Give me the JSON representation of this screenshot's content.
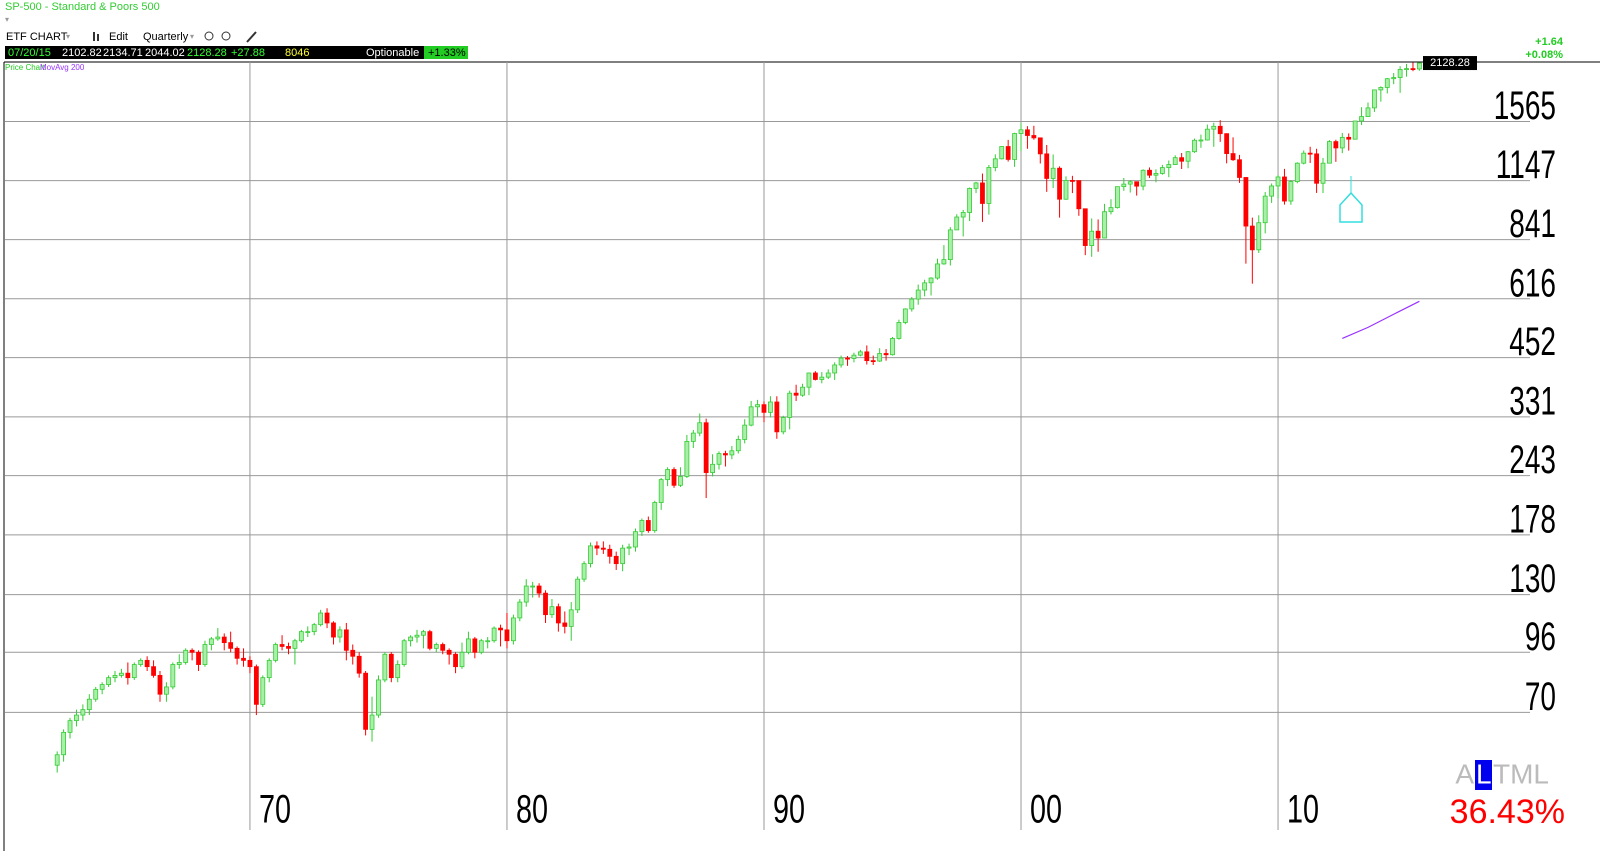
{
  "window": {
    "title": "SP-500 - Standard & Poors 500",
    "toolbar": [
      "ETF CHART",
      "Edit",
      "Quarterly"
    ],
    "quote": {
      "date": "07/20/15",
      "open": "2102.82",
      "high": "2134.71",
      "low": "2044.02",
      "last": "2128.28",
      "change": "+27.88",
      "volume": "8046",
      "flag": "Optionable",
      "pct": "+1.33%"
    },
    "change_right": "+1.64",
    "pct_right": "+0.08%",
    "indicator": {
      "prefix": "A",
      "highlight": "L",
      "suffix": "TML",
      "value": "36.43%"
    }
  },
  "chart_data": {
    "type": "candlestick",
    "series_name": "Price Chart",
    "yscale": "log",
    "grid": true,
    "up_color": "#33cc33",
    "up_fill": "#a8f0a8",
    "down_color": "#ff0000",
    "xlim": [
      1960.47,
      2017.78
    ],
    "xticks": [
      {
        "value": 1970,
        "label": "70"
      },
      {
        "value": 1980,
        "label": "80"
      },
      {
        "value": 1990,
        "label": "90"
      },
      {
        "value": 2000,
        "label": "00"
      },
      {
        "value": 2010,
        "label": "10"
      }
    ],
    "ylim": [
      37.7,
      2140
    ],
    "yticks": [
      70,
      96,
      130,
      178,
      243,
      331,
      452,
      616,
      841,
      1147,
      1565
    ],
    "last_price": 2128.28,
    "x": [
      1962.5,
      1962.75,
      1963,
      1963.25,
      1963.5,
      1963.75,
      1964,
      1964.25,
      1964.5,
      1964.75,
      1965,
      1965.25,
      1965.5,
      1965.75,
      1966,
      1966.25,
      1966.5,
      1966.75,
      1967,
      1967.25,
      1967.5,
      1967.75,
      1968,
      1968.25,
      1968.5,
      1968.75,
      1969,
      1969.25,
      1969.5,
      1969.75,
      1970,
      1970.25,
      1970.5,
      1970.75,
      1971,
      1971.25,
      1971.5,
      1971.75,
      1972,
      1972.25,
      1972.5,
      1972.75,
      1973,
      1973.25,
      1973.5,
      1973.75,
      1974,
      1974.25,
      1974.5,
      1974.75,
      1975,
      1975.25,
      1975.5,
      1975.75,
      1976,
      1976.25,
      1976.5,
      1976.75,
      1977,
      1977.25,
      1977.5,
      1977.75,
      1978,
      1978.25,
      1978.5,
      1978.75,
      1979,
      1979.25,
      1979.5,
      1979.75,
      1980,
      1980.25,
      1980.5,
      1980.75,
      1981,
      1981.25,
      1981.5,
      1981.75,
      1982,
      1982.25,
      1982.5,
      1982.75,
      1983,
      1983.25,
      1983.5,
      1983.75,
      1984,
      1984.25,
      1984.5,
      1984.75,
      1985,
      1985.25,
      1985.5,
      1985.75,
      1986,
      1986.25,
      1986.5,
      1986.75,
      1987,
      1987.25,
      1987.5,
      1987.75,
      1988,
      1988.25,
      1988.5,
      1988.75,
      1989,
      1989.25,
      1989.5,
      1989.75,
      1990,
      1990.25,
      1990.5,
      1990.75,
      1991,
      1991.25,
      1991.5,
      1991.75,
      1992,
      1992.25,
      1992.5,
      1992.75,
      1993,
      1993.25,
      1993.5,
      1993.75,
      1994,
      1994.25,
      1994.5,
      1994.75,
      1995,
      1995.25,
      1995.5,
      1995.75,
      1996,
      1996.25,
      1996.5,
      1996.75,
      1997,
      1997.25,
      1997.5,
      1997.75,
      1998,
      1998.25,
      1998.5,
      1998.75,
      1999,
      1999.25,
      1999.5,
      1999.75,
      2000,
      2000.25,
      2000.5,
      2000.75,
      2001,
      2001.25,
      2001.5,
      2001.75,
      2002,
      2002.25,
      2002.5,
      2002.75,
      2003,
      2003.25,
      2003.5,
      2003.75,
      2004,
      2004.25,
      2004.5,
      2004.75,
      2005,
      2005.25,
      2005.5,
      2005.75,
      2006,
      2006.25,
      2006.5,
      2006.75,
      2007,
      2007.25,
      2007.5,
      2007.75,
      2008,
      2008.25,
      2008.5,
      2008.75,
      2009,
      2009.25,
      2009.5,
      2009.75,
      2010,
      2010.25,
      2010.5,
      2010.75,
      2011,
      2011.25,
      2011.5,
      2011.75,
      2012,
      2012.25,
      2012.5,
      2012.75,
      2013,
      2013.25,
      2013.5,
      2013.75,
      2014,
      2014.25,
      2014.5,
      2014.75,
      2015,
      2015.25,
      2015.5
    ],
    "open": [
      53,
      56,
      63,
      67,
      69,
      71,
      75,
      79,
      81,
      84,
      85,
      86,
      84,
      90,
      92,
      89,
      85,
      77,
      80,
      90,
      91,
      97,
      96,
      90,
      100,
      103,
      104,
      101,
      98,
      93,
      92,
      89,
      73,
      84,
      92,
      100,
      99,
      98,
      102,
      107,
      107,
      111,
      118,
      112,
      104,
      108,
      97,
      94,
      86,
      64,
      69,
      83,
      95,
      84,
      90,
      102,
      104,
      105,
      107,
      98,
      100,
      97,
      95,
      89,
      96,
      103,
      96,
      102,
      102,
      109,
      108,
      102,
      115,
      125,
      136,
      136,
      131,
      117,
      122,
      112,
      110,
      120,
      141,
      153,
      168,
      166,
      165,
      159,
      153,
      166,
      167,
      181,
      192,
      182,
      211,
      238,
      251,
      231,
      242,
      291,
      304,
      321,
      247,
      258,
      273,
      271,
      277,
      294,
      317,
      349,
      353,
      339,
      358,
      306,
      330,
      375,
      371,
      387,
      417,
      403,
      408,
      417,
      435,
      451,
      450,
      458,
      466,
      445,
      444,
      462,
      459,
      500,
      544,
      584,
      615,
      645,
      670,
      687,
      740,
      757,
      885,
      947,
      970,
      1101,
      1133,
      1017,
      1229,
      1286,
      1372,
      1282,
      1469,
      1498,
      1454,
      1436,
      1320,
      1160,
      1224,
      1040,
      1148,
      1147,
      989,
      815,
      879,
      848,
      974,
      995,
      1111,
      1126,
      1140,
      1114,
      1211,
      1180,
      1191,
      1228,
      1248,
      1294,
      1270,
      1335,
      1418,
      1420,
      1503,
      1526,
      1468,
      1322,
      1280,
      1166,
      903,
      797,
      919,
      1057,
      1115,
      1169,
      1030,
      1141,
      1257,
      1325,
      1320,
      1131,
      1257,
      1408,
      1362,
      1440,
      1426,
      1569,
      1606,
      1681,
      1848,
      1872,
      1960,
      1972,
      2058,
      2067,
      2063
    ],
    "high": [
      57,
      64,
      68,
      71,
      73,
      77,
      80,
      82,
      85,
      87,
      88,
      91,
      91,
      93,
      94,
      92,
      87,
      82,
      91,
      95,
      98,
      98,
      97,
      102,
      104,
      109,
      106,
      107,
      99,
      98,
      94,
      90,
      85,
      93,
      101,
      105,
      101,
      103,
      108,
      110,
      112,
      120,
      121,
      113,
      110,
      112,
      100,
      96,
      87,
      76,
      85,
      96,
      96,
      92,
      103,
      105,
      108,
      108,
      108,
      101,
      101,
      98,
      96,
      101,
      107,
      104,
      103,
      104,
      110,
      111,
      118,
      117,
      127,
      141,
      139,
      138,
      133,
      127,
      124,
      119,
      125,
      143,
      155,
      171,
      172,
      172,
      169,
      163,
      169,
      170,
      184,
      194,
      196,
      213,
      240,
      254,
      254,
      254,
      301,
      309,
      337,
      328,
      272,
      276,
      277,
      284,
      300,
      327,
      360,
      362,
      359,
      369,
      369,
      333,
      380,
      392,
      394,
      418,
      421,
      419,
      425,
      441,
      457,
      456,
      464,
      471,
      482,
      457,
      475,
      473,
      504,
      552,
      586,
      622,
      664,
      681,
      690,
      761,
      817,
      898,
      961,
      983,
      1106,
      1139,
      1190,
      1245,
      1317,
      1373,
      1421,
      1475,
      1553,
      1527,
      1530,
      1437,
      1383,
      1316,
      1236,
      1173,
      1176,
      1148,
      990,
      940,
      935,
      1015,
      1040,
      1112,
      1163,
      1150,
      1141,
      1217,
      1229,
      1217,
      1246,
      1275,
      1310,
      1326,
      1340,
      1431,
      1461,
      1540,
      1555,
      1576,
      1471,
      1440,
      1313,
      1167,
      944,
      956,
      1080,
      1130,
      1180,
      1220,
      1150,
      1263,
      1344,
      1370,
      1356,
      1292,
      1419,
      1422,
      1474,
      1470,
      1570,
      1687,
      1729,
      1849,
      1883,
      1968,
      2019,
      2093,
      2119,
      2135,
      2134.71
    ],
    "low": [
      51,
      54,
      61,
      65,
      67,
      69,
      74,
      77,
      80,
      82,
      84,
      81,
      83,
      89,
      87,
      84,
      74,
      74,
      79,
      88,
      90,
      92,
      87,
      89,
      97,
      102,
      97,
      96,
      90,
      89,
      86,
      69,
      72,
      82,
      91,
      97,
      95,
      90,
      101,
      104,
      105,
      110,
      109,
      100,
      101,
      92,
      90,
      84,
      62,
      60,
      68,
      82,
      82,
      82,
      89,
      99,
      101,
      98,
      97,
      96,
      95,
      90,
      86,
      88,
      95,
      93,
      95,
      98,
      101,
      99,
      98,
      100,
      113,
      122,
      128,
      128,
      112,
      115,
      107,
      106,
      102,
      118,
      139,
      150,
      160,
      161,
      153,
      148,
      147,
      160,
      163,
      177,
      180,
      180,
      203,
      230,
      228,
      229,
      240,
      281,
      299,
      216,
      242,
      251,
      255,
      265,
      273,
      288,
      315,
      331,
      322,
      330,
      295,
      302,
      310,
      360,
      368,
      371,
      401,
      395,
      404,
      402,
      429,
      433,
      441,
      455,
      436,
      435,
      442,
      445,
      457,
      497,
      539,
      576,
      597,
      624,
      627,
      681,
      737,
      734,
      885,
      855,
      927,
      1074,
      923,
      959,
      1205,
      1282,
      1268,
      1233,
      1339,
      1356,
      1422,
      1255,
      1081,
      1103,
      944,
      1037,
      1074,
      953,
      775,
      768,
      789,
      847,
      960,
      990,
      1087,
      1077,
      1060,
      1090,
      1163,
      1137,
      1183,
      1168,
      1245,
      1219,
      1224,
      1327,
      1363,
      1416,
      1370,
      1406,
      1256,
      1272,
      1133,
      741,
      667,
      784,
      869,
      1020,
      1045,
      1011,
      1010,
      1131,
      1249,
      1258,
      1075,
      1074,
      1258,
      1266,
      1325,
      1343,
      1426,
      1536,
      1604,
      1646,
      1737,
      1814,
      1904,
      1820,
      1981,
      2039,
      2044.02
    ],
    "close": [
      56,
      63,
      67,
      69,
      71,
      75,
      79,
      81,
      84,
      85,
      86,
      84,
      90,
      92,
      89,
      85,
      77,
      80,
      90,
      91,
      97,
      96,
      90,
      100,
      103,
      104,
      101,
      98,
      93,
      92,
      89,
      73,
      84,
      92,
      100,
      99,
      98,
      102,
      107,
      107,
      111,
      118,
      112,
      104,
      108,
      97,
      94,
      86,
      64,
      69,
      83,
      95,
      84,
      90,
      102,
      104,
      105,
      107,
      98,
      100,
      97,
      95,
      89,
      96,
      103,
      96,
      102,
      102,
      109,
      108,
      102,
      115,
      125,
      136,
      136,
      131,
      117,
      122,
      112,
      110,
      120,
      141,
      153,
      168,
      166,
      165,
      159,
      153,
      166,
      167,
      181,
      192,
      182,
      211,
      238,
      251,
      231,
      242,
      291,
      304,
      321,
      247,
      258,
      273,
      271,
      277,
      294,
      317,
      349,
      353,
      339,
      358,
      306,
      330,
      375,
      371,
      387,
      417,
      403,
      408,
      417,
      435,
      451,
      450,
      458,
      466,
      445,
      444,
      462,
      459,
      500,
      544,
      584,
      615,
      645,
      670,
      687,
      740,
      757,
      885,
      947,
      970,
      1101,
      1133,
      1017,
      1229,
      1286,
      1372,
      1282,
      1469,
      1498,
      1454,
      1436,
      1320,
      1160,
      1224,
      1040,
      1148,
      1147,
      989,
      815,
      879,
      848,
      974,
      995,
      1111,
      1126,
      1140,
      1114,
      1211,
      1180,
      1191,
      1228,
      1248,
      1294,
      1270,
      1335,
      1418,
      1420,
      1503,
      1526,
      1468,
      1322,
      1280,
      1166,
      903,
      797,
      919,
      1057,
      1115,
      1169,
      1030,
      1141,
      1257,
      1325,
      1320,
      1131,
      1257,
      1408,
      1362,
      1440,
      1426,
      1569,
      1606,
      1681,
      1848,
      1872,
      1960,
      1972,
      2058,
      2067,
      2063,
      2128.28
    ],
    "overlays": [
      {
        "name": "MovAvg 200",
        "color": "#9933ff",
        "x": [
          2012.5,
          2013.5,
          2014.5,
          2015.5
        ],
        "values": [
          500,
          530,
          568,
          608
        ]
      }
    ]
  }
}
